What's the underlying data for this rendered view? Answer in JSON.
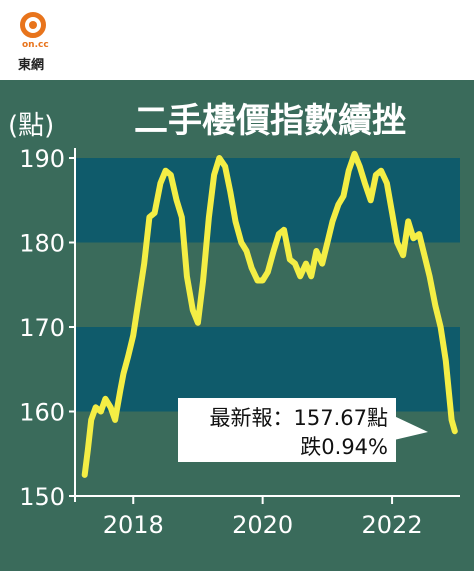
{
  "logo": {
    "brand_mark": "on.cc",
    "brand_name": "東網",
    "icon": "on-cc-logo-icon"
  },
  "chart_data": {
    "type": "line",
    "title": "二手樓價指數續挫",
    "ylabel": "(點)",
    "ylim": [
      150,
      190
    ],
    "yticks": [
      150,
      160,
      170,
      180,
      190
    ],
    "xlim": [
      2017.1,
      2023.05
    ],
    "xticks": [
      2018,
      2020,
      2022
    ],
    "xtick_labels": [
      "2018",
      "2020",
      "2022"
    ],
    "grid": "alternating horizontal bands",
    "annotation": {
      "line1": "最新報：157.67點",
      "line2": "跌0.94%"
    },
    "colors": {
      "panel": "#3a6b5b",
      "band": "#0f5b6b",
      "line": "#f4ee45",
      "annotation_bg": "#ffffff"
    },
    "series": [
      {
        "x": [
          2017.25,
          2017.3,
          2017.35,
          2017.42,
          2017.5,
          2017.57,
          2017.65,
          2017.72,
          2017.8,
          2017.85,
          2017.92,
          2018.0,
          2018.08,
          2018.17,
          2018.25,
          2018.33,
          2018.42,
          2018.5,
          2018.58,
          2018.67,
          2018.75,
          2018.83,
          2018.92,
          2019.0,
          2019.08,
          2019.17,
          2019.25,
          2019.33,
          2019.42,
          2019.5,
          2019.58,
          2019.67,
          2019.75,
          2019.83,
          2019.92,
          2020.0,
          2020.08,
          2020.17,
          2020.25,
          2020.33,
          2020.42,
          2020.5,
          2020.58,
          2020.67,
          2020.75,
          2020.83,
          2020.92,
          2021.0,
          2021.08,
          2021.17,
          2021.25,
          2021.33,
          2021.42,
          2021.5,
          2021.58,
          2021.67,
          2021.75,
          2021.83,
          2021.92,
          2022.0,
          2022.08,
          2022.17,
          2022.25,
          2022.33,
          2022.42,
          2022.5,
          2022.58,
          2022.67,
          2022.75,
          2022.83,
          2022.92,
          2022.97
        ],
        "y": [
          152.5,
          155.5,
          159.0,
          160.5,
          160.0,
          161.5,
          160.5,
          159.0,
          162.5,
          164.5,
          166.5,
          169.0,
          173.0,
          177.5,
          183.0,
          183.5,
          187.0,
          188.5,
          188.0,
          185.0,
          183.0,
          176.0,
          172.0,
          170.5,
          175.5,
          183.0,
          188.0,
          190.0,
          189.0,
          186.0,
          182.5,
          180.0,
          179.0,
          177.0,
          175.5,
          175.5,
          176.5,
          179.0,
          181.0,
          181.5,
          178.0,
          177.5,
          176.0,
          177.5,
          176.0,
          179.0,
          177.5,
          180.0,
          182.5,
          184.5,
          185.5,
          188.5,
          190.5,
          189.0,
          187.0,
          185.0,
          188.0,
          188.5,
          187.0,
          183.5,
          180.0,
          178.5,
          182.5,
          180.5,
          181.0,
          178.5,
          176.0,
          172.5,
          170.0,
          166.0,
          159.0,
          157.67
        ]
      }
    ]
  }
}
